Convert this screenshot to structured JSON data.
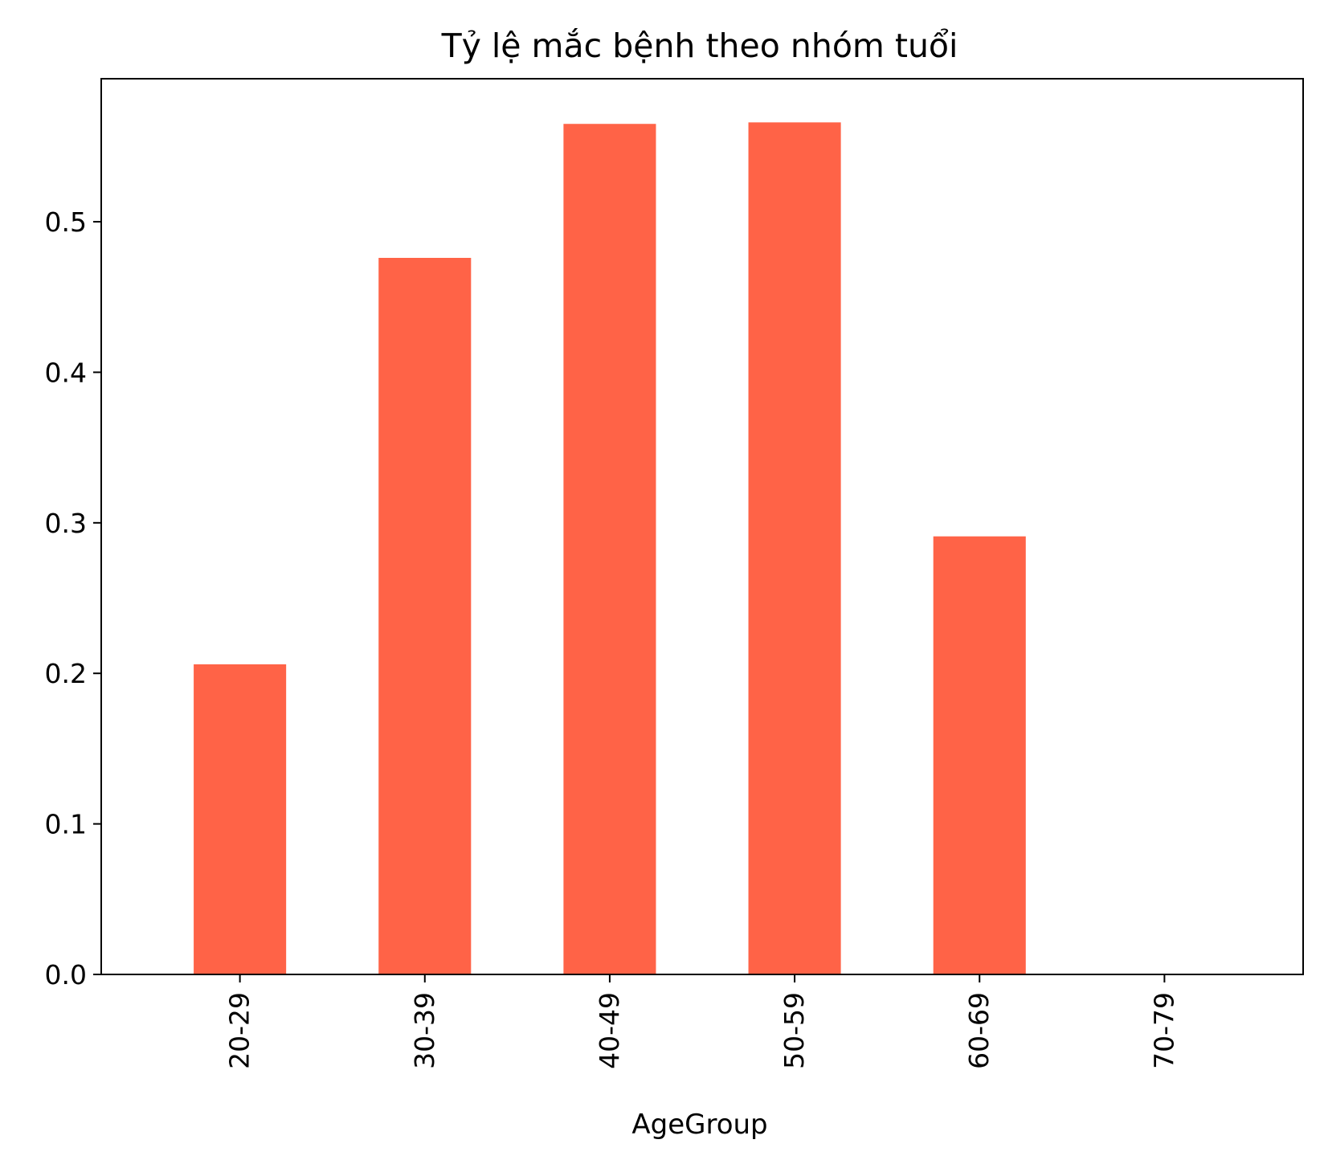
{
  "chart_data": {
    "type": "bar",
    "title": "Tỷ lệ mắc bệnh theo nhóm tuổi",
    "xlabel": "AgeGroup",
    "ylabel": "",
    "categories": [
      "20-29",
      "30-39",
      "40-49",
      "50-59",
      "60-69",
      "70-79"
    ],
    "values": [
      0.206,
      0.476,
      0.565,
      0.566,
      0.291,
      0.0
    ],
    "ylim": [
      0,
      0.595
    ],
    "yticks": [
      0.0,
      0.1,
      0.2,
      0.3,
      0.4,
      0.5
    ],
    "ytick_labels": [
      "0.0",
      "0.1",
      "0.2",
      "0.3",
      "0.4",
      "0.5"
    ],
    "bar_color": "#ff6347",
    "grid": false,
    "legend": "none",
    "x_tick_rotation": "vertical"
  }
}
